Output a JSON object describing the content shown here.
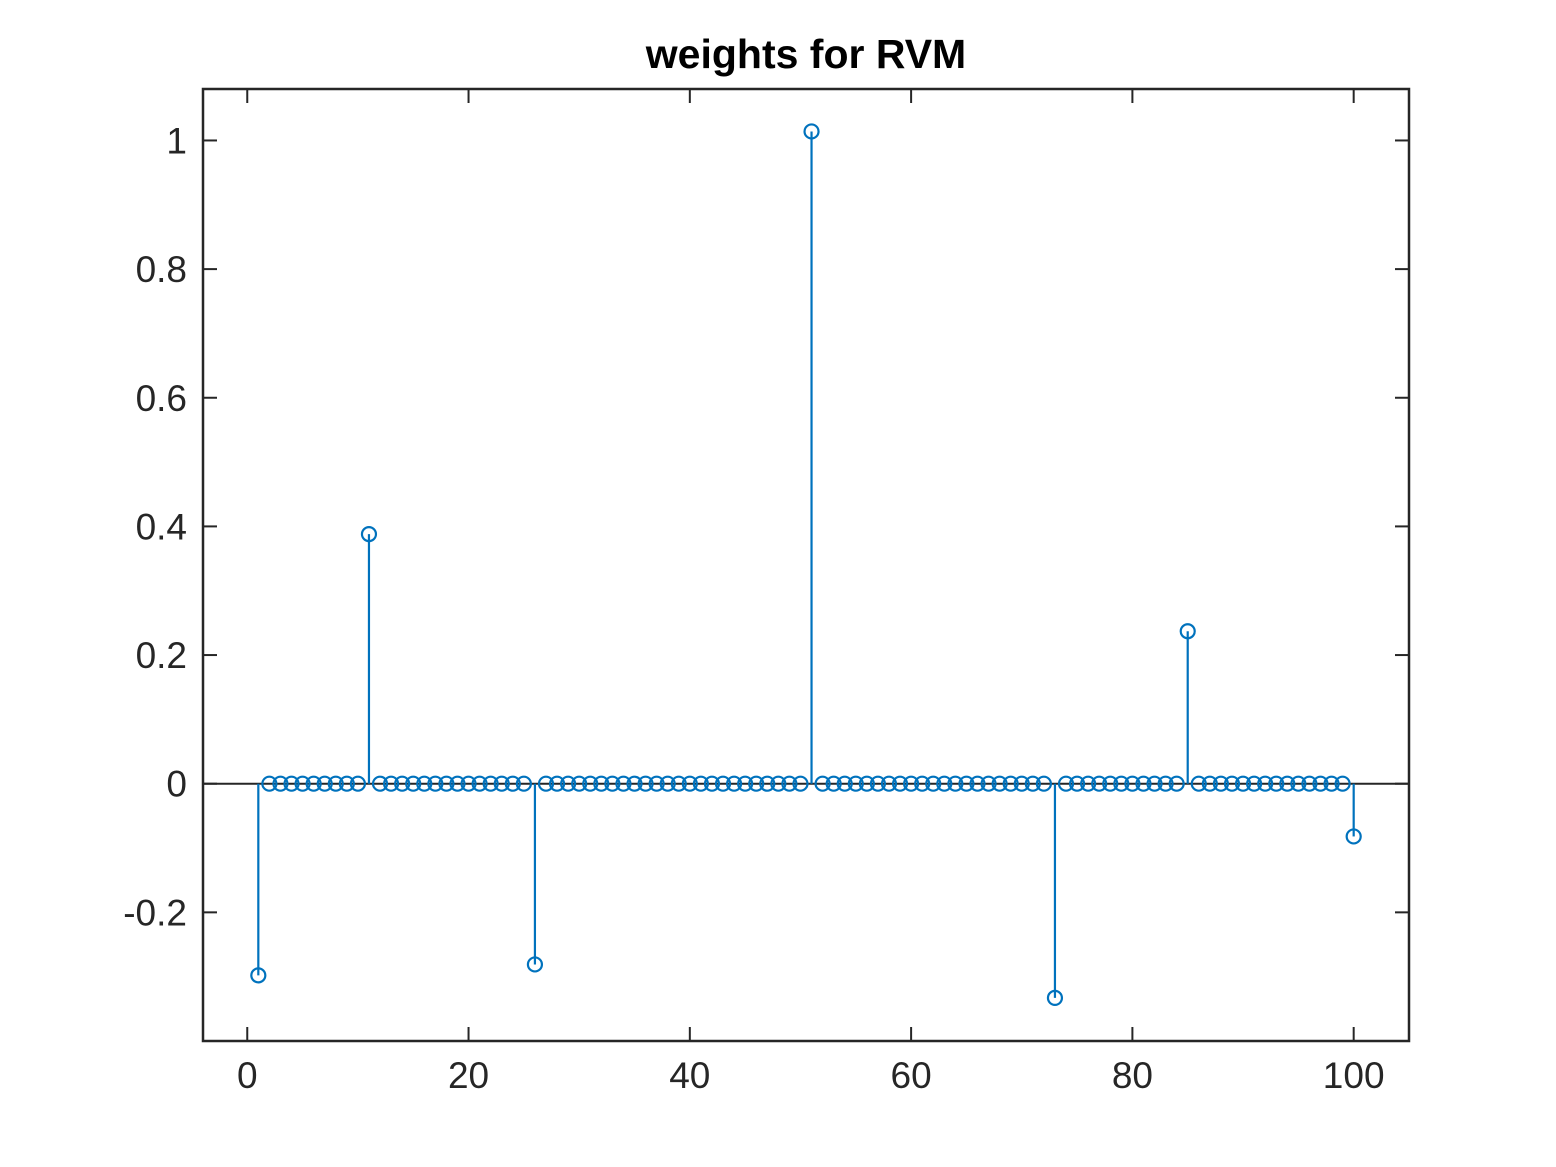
{
  "chart_data": {
    "type": "stem",
    "title": "weights for RVM",
    "xlabel": "",
    "ylabel": "",
    "xlim": [
      -4,
      105
    ],
    "ylim": [
      -0.4,
      1.08
    ],
    "xticks": [
      0,
      20,
      40,
      60,
      80,
      100
    ],
    "xtick_labels": [
      "0",
      "20",
      "40",
      "60",
      "80",
      "100"
    ],
    "yticks": [
      -0.2,
      0,
      0.2,
      0.4,
      0.6,
      0.8,
      1
    ],
    "ytick_labels": [
      "-0.2",
      "0",
      "0.2",
      "0.4",
      "0.6",
      "0.8",
      "1"
    ],
    "grid": false,
    "legend": "none",
    "baseline": 0,
    "color": "#0072bd",
    "series": [
      {
        "x": [
          1,
          2,
          3,
          4,
          5,
          6,
          7,
          8,
          9,
          10,
          11,
          12,
          13,
          14,
          15,
          16,
          17,
          18,
          19,
          20,
          21,
          22,
          23,
          24,
          25,
          26,
          27,
          28,
          29,
          30,
          31,
          32,
          33,
          34,
          35,
          36,
          37,
          38,
          39,
          40,
          41,
          42,
          43,
          44,
          45,
          46,
          47,
          48,
          49,
          50,
          51,
          52,
          53,
          54,
          55,
          56,
          57,
          58,
          59,
          60,
          61,
          62,
          63,
          64,
          65,
          66,
          67,
          68,
          69,
          70,
          71,
          72,
          73,
          74,
          75,
          76,
          77,
          78,
          79,
          80,
          81,
          82,
          83,
          84,
          85,
          86,
          87,
          88,
          89,
          90,
          91,
          92,
          93,
          94,
          95,
          96,
          97,
          98,
          99,
          100
        ],
        "values": [
          -0.298,
          0,
          0,
          0,
          0,
          0,
          0,
          0,
          0,
          0,
          0.388,
          0,
          0,
          0,
          0,
          0,
          0,
          0,
          0,
          0,
          0,
          0,
          0,
          0,
          0,
          -0.281,
          0,
          0,
          0,
          0,
          0,
          0,
          0,
          0,
          0,
          0,
          0,
          0,
          0,
          0,
          0,
          0,
          0,
          0,
          0,
          0,
          0,
          0,
          0,
          0,
          1.014,
          0,
          0,
          0,
          0,
          0,
          0,
          0,
          0,
          0,
          0,
          0,
          0,
          0,
          0,
          0,
          0,
          0,
          0,
          0,
          0,
          0,
          -0.333,
          0,
          0,
          0,
          0,
          0,
          0,
          0,
          0,
          0,
          0,
          0,
          0.237,
          0,
          0,
          0,
          0,
          0,
          0,
          0,
          0,
          0,
          0,
          0,
          0,
          0,
          0,
          -0.082
        ]
      }
    ]
  }
}
